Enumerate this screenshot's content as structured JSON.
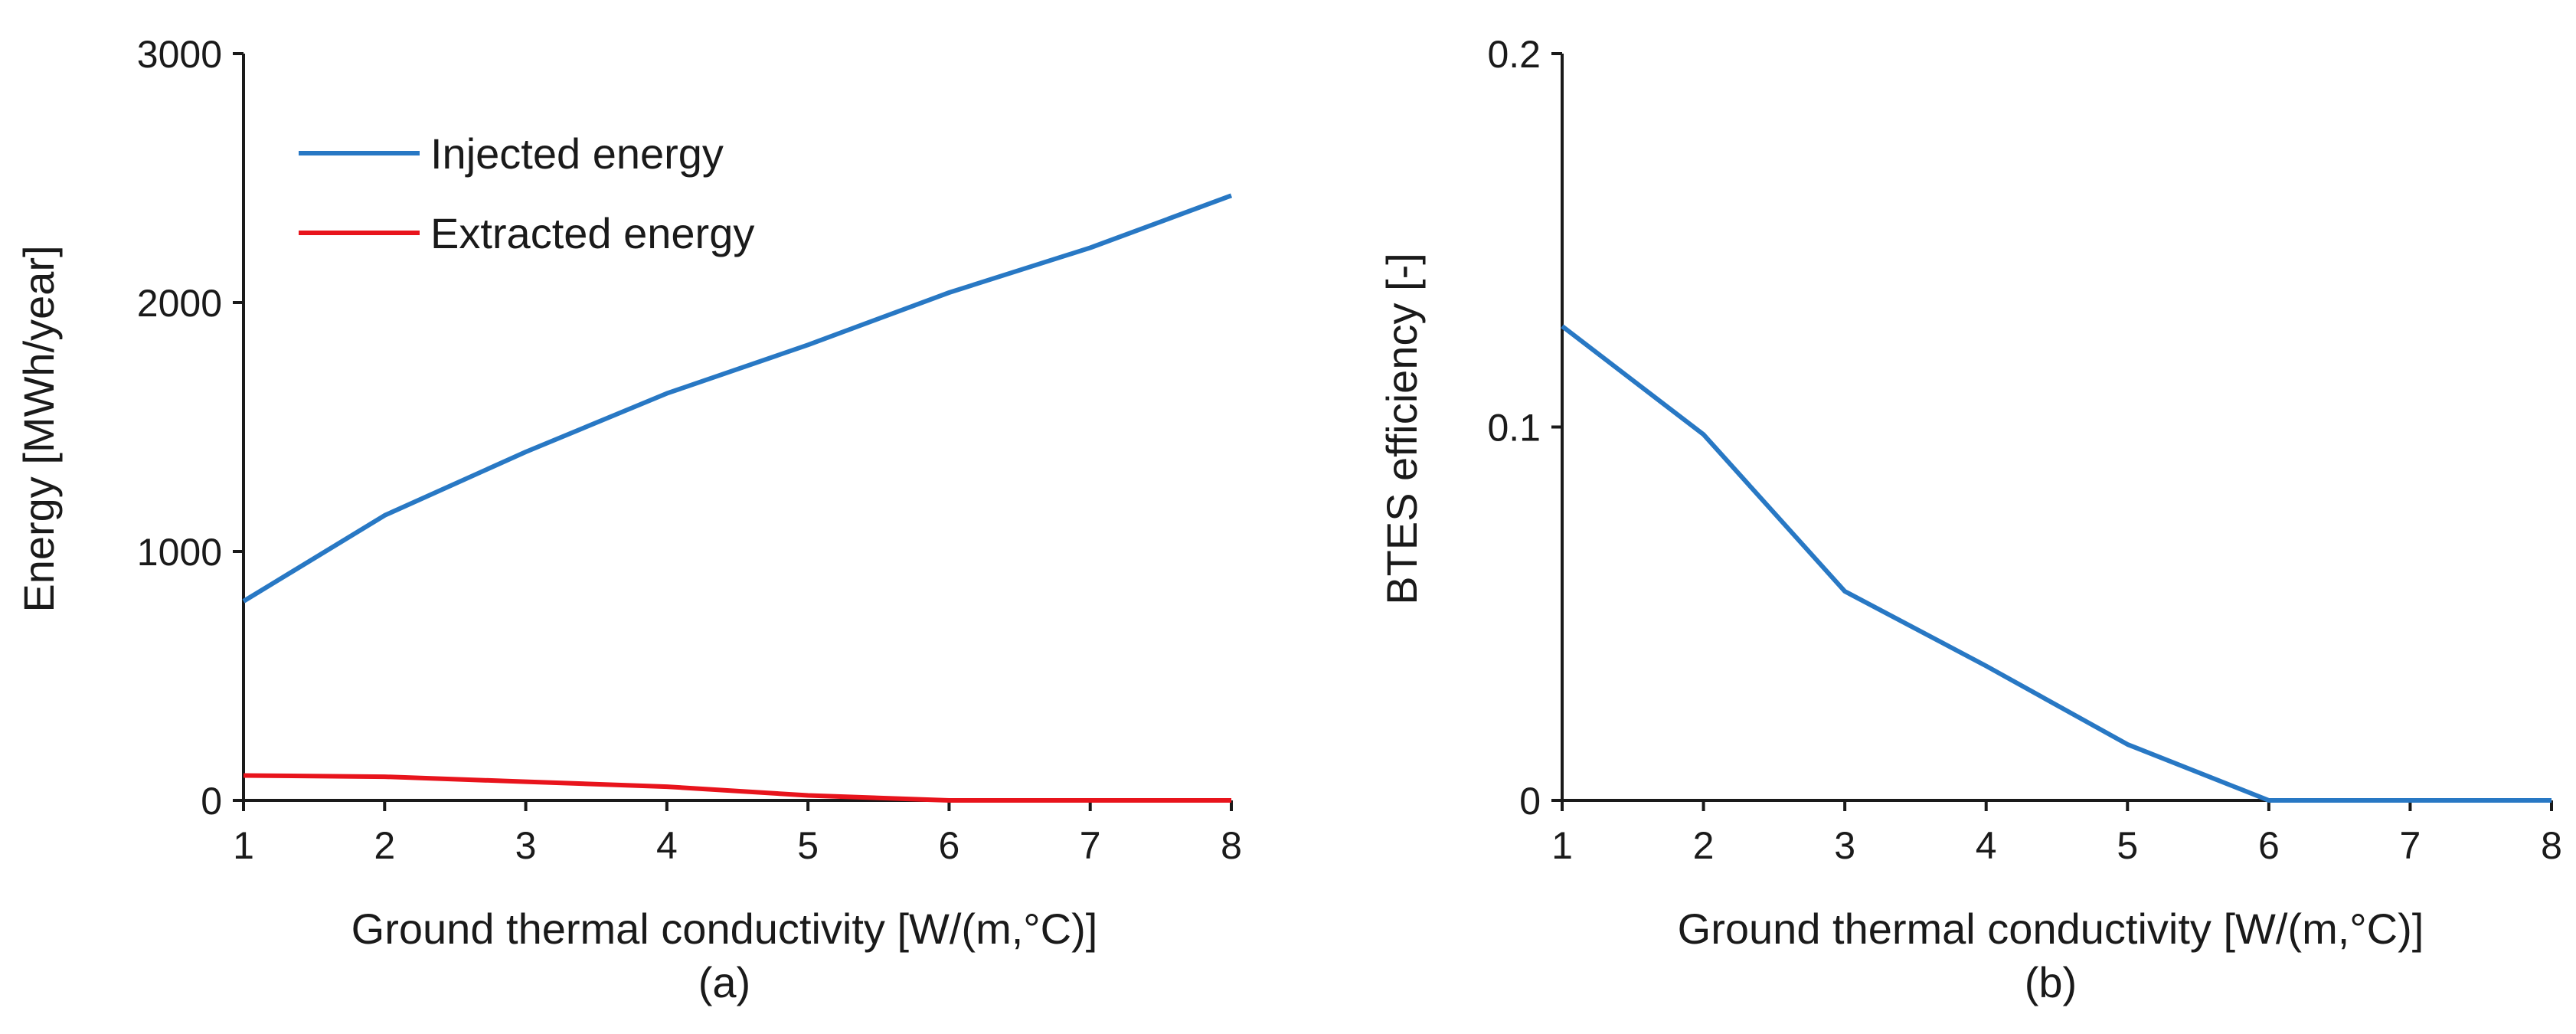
{
  "colors": {
    "injected": "#2878c4",
    "extracted": "#e8141c",
    "axis": "#1a1a1a"
  },
  "chart_data": [
    {
      "type": "line",
      "caption": "(a)",
      "xlabel": "Ground thermal conductivity [W/(m,°C)]",
      "ylabel": "Energy [MWh/year]",
      "xlim": [
        1,
        8
      ],
      "ylim": [
        0,
        3000
      ],
      "xticks": [
        1,
        2,
        3,
        4,
        5,
        6,
        7,
        8
      ],
      "yticks": [
        0,
        1000,
        2000,
        3000
      ],
      "grid": false,
      "legend": "top-left",
      "x": [
        1,
        2,
        3,
        4,
        5,
        6,
        7,
        8
      ],
      "series": [
        {
          "name": "Injected energy",
          "color": "#2878c4",
          "values": [
            800,
            1145,
            1400,
            1635,
            1830,
            2040,
            2220,
            2430
          ]
        },
        {
          "name": "Extracted energy",
          "color": "#e8141c",
          "values": [
            100,
            95,
            75,
            55,
            20,
            0,
            0,
            0
          ]
        }
      ]
    },
    {
      "type": "line",
      "caption": "(b)",
      "xlabel": "Ground thermal conductivity [W/(m,°C)]",
      "ylabel": "BTES efficiency [-]",
      "xlim": [
        1,
        8
      ],
      "ylim": [
        0,
        0.2
      ],
      "xticks": [
        1,
        2,
        3,
        4,
        5,
        6,
        7,
        8
      ],
      "yticks": [
        0,
        0.1,
        0.2
      ],
      "ytick_labels": [
        "0",
        "0.1",
        "0.2"
      ],
      "grid": false,
      "x": [
        1,
        2,
        3,
        4,
        5,
        6,
        7,
        8
      ],
      "series": [
        {
          "name": "BTES efficiency",
          "color": "#2878c4",
          "values": [
            0.127,
            0.098,
            0.056,
            0.036,
            0.015,
            0,
            0,
            0
          ]
        }
      ]
    }
  ]
}
